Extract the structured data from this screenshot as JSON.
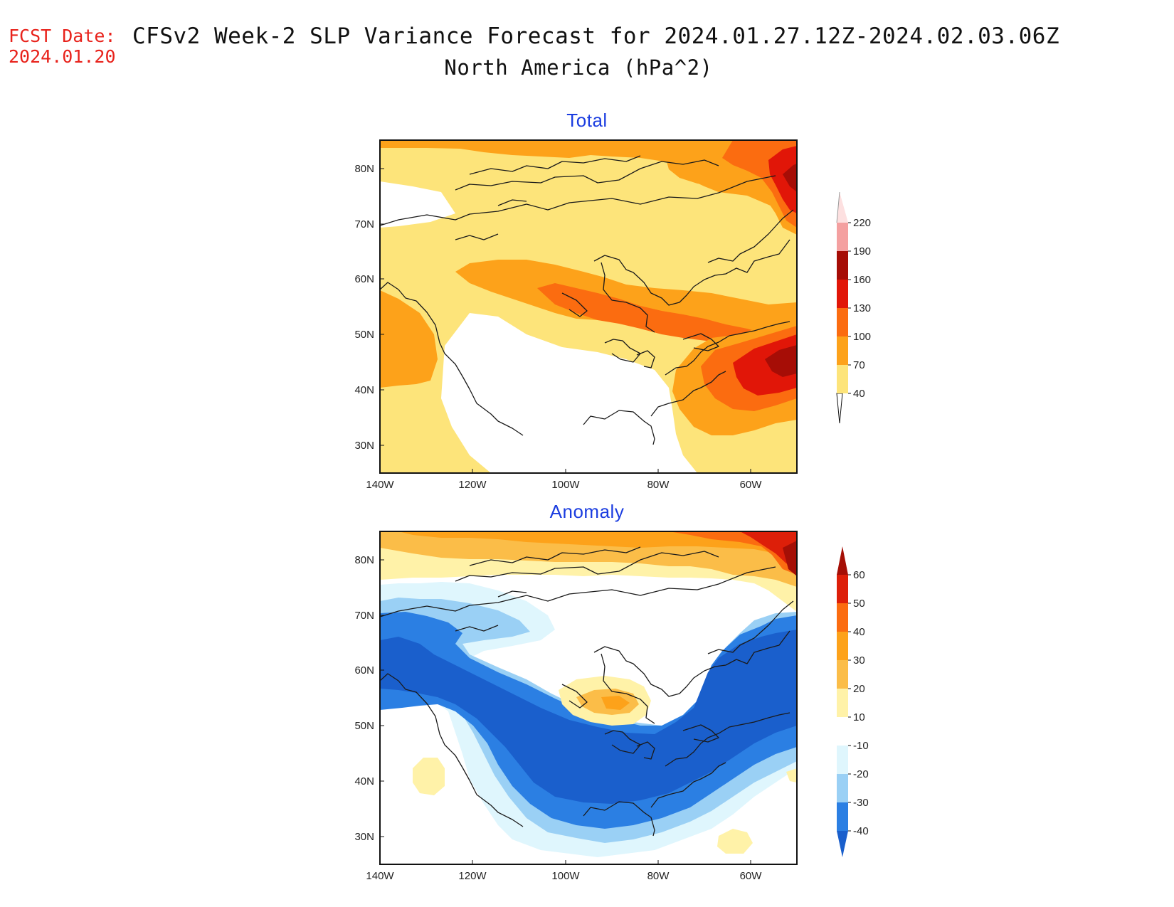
{
  "forecast_date": {
    "label": "FCST Date:",
    "value": "2024.01.20"
  },
  "title": "CFSv2 Week-2 SLP Variance Forecast for 2024.01.27.12Z-2024.02.03.06Z",
  "subtitle": "North America (hPa^2)",
  "map_panels": [
    {
      "title": "Total",
      "region": {
        "lon_range": [
          -140,
          -50
        ],
        "lat_range": [
          25,
          85
        ]
      },
      "lat_ticks": [
        "80N",
        "70N",
        "60N",
        "50N",
        "40N",
        "30N"
      ],
      "lon_ticks": [
        "140W",
        "120W",
        "100W",
        "80W",
        "60W"
      ],
      "colorbar": {
        "levels": [
          "40",
          "70",
          "100",
          "130",
          "160",
          "190",
          "220"
        ],
        "colors": [
          "#fde47a",
          "#fda21a",
          "#fb6c10",
          "#e11608",
          "#a60d06",
          "#f4a0a0",
          "#fde0e0"
        ]
      },
      "features": "Northern belt 40-70 with 70-100 near Greenland and up to 160 east of Greenland; band of 70-130 from Yukon across Hudson Bay to Great Lakes; 100-160 maximum off Nova Scotia/Newfoundland; 70-100 off Pacific coast; below 40 over western/central US"
    },
    {
      "title": "Anomaly",
      "region": {
        "lon_range": [
          -140,
          -50
        ],
        "lat_range": [
          25,
          85
        ]
      },
      "lat_ticks": [
        "80N",
        "70N",
        "60N",
        "50N",
        "40N",
        "30N"
      ],
      "lon_ticks": [
        "140W",
        "120W",
        "100W",
        "80W",
        "60W"
      ],
      "colorbar": {
        "levels": [
          "60",
          "50",
          "40",
          "30",
          "20",
          "10",
          "-10",
          "-20",
          "-30",
          "-40"
        ],
        "colors": [
          "#a50f06",
          "#dd1f09",
          "#fb6c10",
          "#fda21a",
          "#fbbd48",
          "#fff2a8",
          "#ffffff",
          "#dff6fd",
          "#9ad0f5",
          "#2b7fe3",
          "#1a5fcc"
        ]
      },
      "features": "Positive anomalies 10-60 in Arctic band along top, highest northeast; small positive 10-30 maximum over Hudson Bay/Ontario; negative anomalies -20 to -40+ in broad U-shaped band from Alaska/Pacific coast through central US to eastern Canada; small positive spots off California and in Atlantic"
    }
  ]
}
